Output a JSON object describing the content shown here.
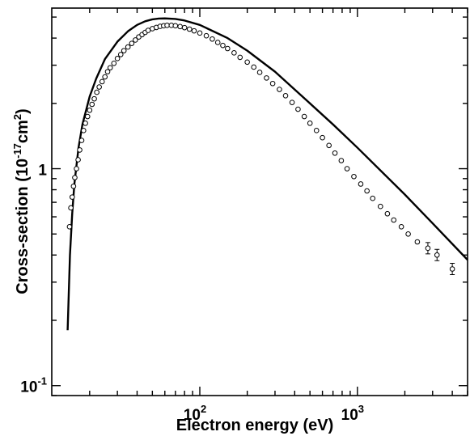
{
  "chart_data": {
    "type": "scatter",
    "xlabel": "Electron energy (eV)",
    "ylabel_main": "Cross-section (10",
    "ylabel_exp": "-17",
    "ylabel_unit": "cm",
    "ylabel_unit_exp": "2",
    "ylabel_close": ")",
    "x_scale": "log",
    "y_scale": "log",
    "xlim": [
      11.5,
      5000
    ],
    "ylim": [
      0.09,
      5.5
    ],
    "grid": false,
    "x_ticks": [
      {
        "value": 100,
        "base": "10",
        "exp": "2"
      },
      {
        "value": 1000,
        "base": "10",
        "exp": "3"
      }
    ],
    "y_ticks": [
      {
        "value": 0.1,
        "base": "10",
        "exp": "-1"
      },
      {
        "value": 1,
        "base": "1",
        "exp": ""
      }
    ],
    "series": [
      {
        "style": "line",
        "x": [
          14.5,
          15,
          15.5,
          16,
          17,
          18,
          20,
          22,
          25,
          30,
          35,
          40,
          45,
          50,
          55,
          60,
          70,
          80,
          100,
          150,
          200,
          300,
          500,
          700,
          1000,
          2000,
          3000,
          5000
        ],
        "y": [
          0.18,
          0.4,
          0.62,
          0.85,
          1.25,
          1.6,
          2.15,
          2.6,
          3.2,
          3.85,
          4.3,
          4.6,
          4.78,
          4.88,
          4.92,
          4.93,
          4.9,
          4.82,
          4.6,
          4.0,
          3.5,
          2.8,
          2.0,
          1.6,
          1.25,
          0.76,
          0.56,
          0.38
        ]
      },
      {
        "style": "markers",
        "x": [
          14.9,
          15.2,
          15.5,
          15.8,
          16.1,
          16.5,
          16.9,
          17.3,
          17.8,
          18.3,
          18.8,
          19.4,
          20,
          20.7,
          21.4,
          22.2,
          23,
          24,
          25,
          26,
          27,
          28.5,
          30,
          31.5,
          33,
          35,
          37,
          39,
          41,
          43,
          45,
          47,
          50,
          53,
          56,
          59,
          62,
          66,
          70,
          75,
          80,
          86,
          92,
          100,
          110,
          120,
          130,
          140,
          150,
          165,
          180,
          200,
          220,
          240,
          265,
          290,
          320,
          350,
          385,
          420,
          460,
          500,
          550,
          600,
          660,
          720,
          790,
          860,
          950,
          1050,
          1150,
          1250,
          1400,
          1550,
          1700,
          1900,
          2100,
          2400,
          2800,
          3200,
          4000
        ],
        "y": [
          0.54,
          0.66,
          0.74,
          0.83,
          0.91,
          1.0,
          1.1,
          1.22,
          1.35,
          1.5,
          1.62,
          1.74,
          1.86,
          1.98,
          2.1,
          2.25,
          2.38,
          2.52,
          2.65,
          2.8,
          2.92,
          3.06,
          3.22,
          3.36,
          3.5,
          3.64,
          3.78,
          3.92,
          4.05,
          4.15,
          4.25,
          4.34,
          4.42,
          4.48,
          4.53,
          4.56,
          4.58,
          4.58,
          4.56,
          4.52,
          4.47,
          4.4,
          4.32,
          4.22,
          4.1,
          3.96,
          3.82,
          3.7,
          3.58,
          3.42,
          3.26,
          3.1,
          2.94,
          2.78,
          2.62,
          2.47,
          2.32,
          2.17,
          2.02,
          1.88,
          1.74,
          1.62,
          1.5,
          1.39,
          1.28,
          1.18,
          1.09,
          1.0,
          0.92,
          0.85,
          0.79,
          0.73,
          0.67,
          0.62,
          0.58,
          0.54,
          0.5,
          0.46,
          0.43,
          0.4,
          0.345
        ]
      }
    ]
  }
}
